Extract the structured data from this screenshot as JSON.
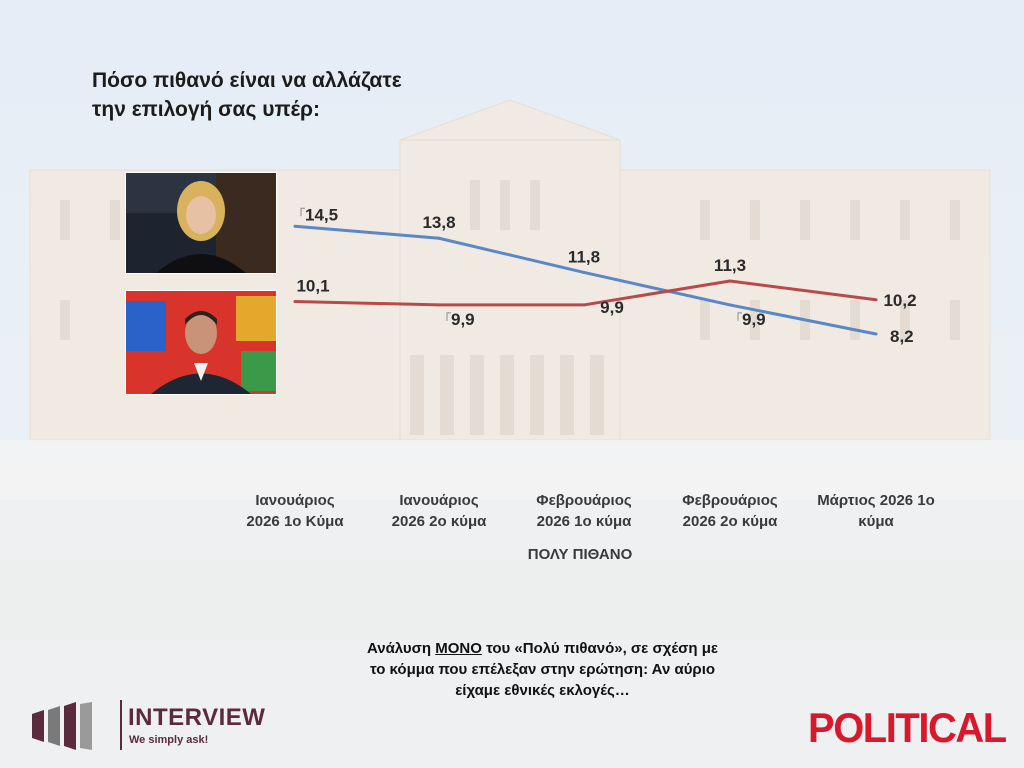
{
  "header": {
    "title_line1": "Πόσο πιθανό είναι να αλλάζατε",
    "title_line2": "την επιλογή σας υπέρ:"
  },
  "chart_data": {
    "type": "line",
    "categories": [
      "Ιανουάριος 2026 1ο Κύμα",
      "Ιανουάριος 2026 2ο κύμα",
      "Φεβρουάριος 2026 1ο κύμα",
      "Φεβρουάριος 2026 2ο κύμα",
      "Μάρτιος 2026 1ο κύμα"
    ],
    "category_lines": [
      [
        "Ιανουάριος",
        "2026 1ο Κύμα"
      ],
      [
        "Ιανουάριος",
        "2026 2ο κύμα"
      ],
      [
        "Φεβρουάριος",
        "2026 1ο κύμα"
      ],
      [
        "Φεβρουάριος",
        "2026 2ο κύμα"
      ],
      [
        "Μάρτιος 2026 1ο",
        "κύμα"
      ]
    ],
    "xlabel": "ΠΟΛΥ ΠΙΘΑΝΟ",
    "series": [
      {
        "values": [
          14.5,
          13.8,
          11.8,
          9.9,
          8.2
        ],
        "labels": [
          "14,5",
          "13,8",
          "11,8",
          "9,9",
          "8,2"
        ],
        "color": "#5a87c6"
      },
      {
        "values": [
          10.1,
          9.9,
          9.9,
          11.3,
          10.2
        ],
        "labels": [
          "10,1",
          "9,9",
          "9,9",
          "11,3",
          "10,2"
        ],
        "color": "#b94a4a"
      }
    ],
    "grid": false,
    "legend": "photos-left"
  },
  "footer": {
    "note_line1_before": "Ανάλυση ",
    "note_line1_underlined": "ΜΟΝΟ",
    "note_line1_after": " του «Πολύ πιθανό», σε σχέση με",
    "note_line2": "το κόμμα που επέλεξαν στην ερώτηση: Αν αύριο",
    "note_line3": "είχαμε εθνικές εκλογές…"
  },
  "logos": {
    "interview_name": "INTERVIEW",
    "interview_tagline": "We simply ask!",
    "political": "POLITICAL",
    "interview_color": "#5b2a3d",
    "political_color": "#d7192b"
  }
}
